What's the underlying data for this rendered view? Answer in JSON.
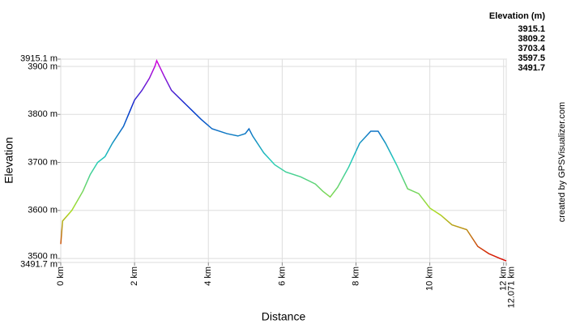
{
  "chart_data": {
    "type": "line",
    "x_label": "Distance",
    "y_label": "Elevation",
    "x": [
      0,
      0.05,
      0.3,
      0.6,
      0.8,
      1.0,
      1.2,
      1.4,
      1.7,
      2.0,
      2.2,
      2.4,
      2.55,
      2.6,
      2.8,
      3.0,
      3.4,
      3.8,
      4.1,
      4.5,
      4.8,
      5.0,
      5.1,
      5.2,
      5.5,
      5.8,
      6.1,
      6.5,
      6.9,
      7.1,
      7.3,
      7.5,
      7.8,
      8.1,
      8.4,
      8.6,
      8.8,
      9.1,
      9.4,
      9.7,
      10.0,
      10.3,
      10.6,
      11.0,
      11.3,
      11.6,
      11.9,
      12.071
    ],
    "values": [
      3530,
      3578,
      3600,
      3640,
      3675,
      3700,
      3712,
      3740,
      3775,
      3830,
      3850,
      3875,
      3900,
      3912,
      3880,
      3850,
      3820,
      3790,
      3770,
      3760,
      3755,
      3760,
      3770,
      3755,
      3720,
      3695,
      3680,
      3670,
      3655,
      3640,
      3628,
      3648,
      3690,
      3740,
      3765,
      3765,
      3740,
      3695,
      3645,
      3635,
      3605,
      3590,
      3570,
      3560,
      3525,
      3510,
      3500,
      3495
    ],
    "xlim": [
      0,
      12.071
    ],
    "ylim": [
      3491.7,
      3915.1
    ],
    "xticks": [
      {
        "value": 0,
        "label": "0 km"
      },
      {
        "value": 2,
        "label": "2 km"
      },
      {
        "value": 4,
        "label": "4 km"
      },
      {
        "value": 6,
        "label": "6 km"
      },
      {
        "value": 8,
        "label": "8 km"
      },
      {
        "value": 10,
        "label": "10 km"
      },
      {
        "value": 12,
        "label": "12 km"
      },
      {
        "value": 12.071,
        "label": "12.071 km"
      }
    ],
    "yticks": [
      {
        "value": 3491.7,
        "label": "3491.7 m"
      },
      {
        "value": 3500,
        "label": "3500 m"
      },
      {
        "value": 3600,
        "label": "3600 m"
      },
      {
        "value": 3700,
        "label": "3700 m"
      },
      {
        "value": 3800,
        "label": "3800 m"
      },
      {
        "value": 3900,
        "label": "3900 m"
      },
      {
        "value": 3915.1,
        "label": "3915.1 m"
      }
    ],
    "grid": true,
    "color_scale": {
      "title": "Elevation (m)",
      "values": [
        3915.1,
        3809.2,
        3703.4,
        3597.5,
        3491.7
      ],
      "colors": [
        "#dd00dd",
        "#0033cc",
        "#22ccbb",
        "#aadd22",
        "#dd0000"
      ]
    },
    "credit": "created by GPSVisualizer.com"
  }
}
